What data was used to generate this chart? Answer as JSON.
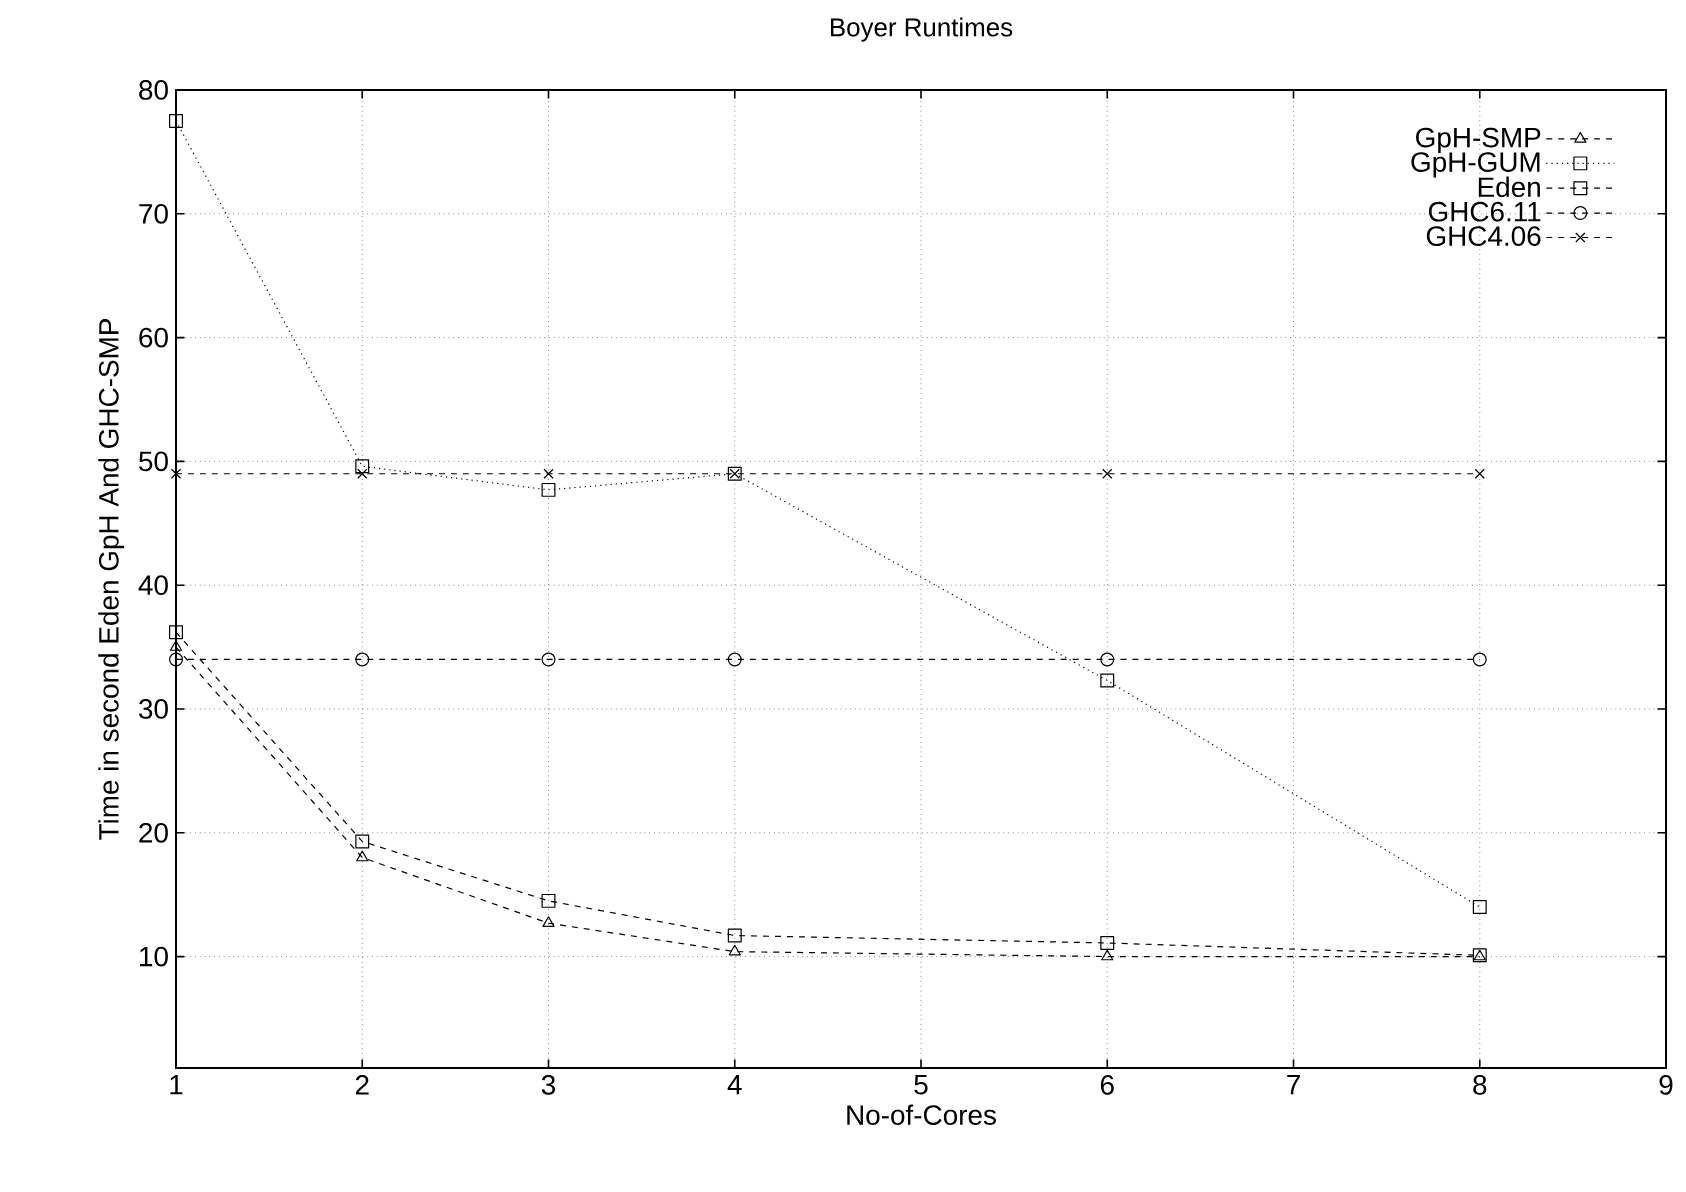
{
  "chart_data": {
    "type": "line",
    "title": "Boyer  Runtimes",
    "xlabel": "No-of-Cores",
    "ylabel": "Time in second Eden GpH And GHC-SMP",
    "x": [
      1,
      2,
      3,
      4,
      6,
      8
    ],
    "series": [
      {
        "name": "GpH-SMP",
        "color": "#000000",
        "marker": "triangle",
        "line_style": "dashed",
        "values": [
          35,
          18,
          12.7,
          10.4,
          10,
          10
        ]
      },
      {
        "name": "GpH-GUM",
        "color": "#000000",
        "marker": "square",
        "line_style": "dotted",
        "values": [
          77.5,
          49.6,
          47.7,
          49,
          32.3,
          14
        ]
      },
      {
        "name": "Eden",
        "color": "#000000",
        "marker": "square",
        "line_style": "dashed",
        "values": [
          36.2,
          19.3,
          14.5,
          11.7,
          11.1,
          10.1
        ]
      },
      {
        "name": "GHC6.11",
        "color": "#000000",
        "marker": "circle",
        "line_style": "dashed",
        "values": [
          34,
          34,
          34,
          34,
          34,
          34
        ]
      },
      {
        "name": "GHC4.06",
        "color": "#000000",
        "marker": "cross",
        "line_style": "dashed",
        "values": [
          49,
          49,
          49,
          49,
          49,
          49
        ]
      }
    ],
    "xlim": [
      1,
      9
    ],
    "xticks": [
      1,
      2,
      3,
      4,
      5,
      6,
      7,
      8,
      9
    ],
    "ylim": [
      1,
      80
    ],
    "yticks": [
      10,
      20,
      30,
      40,
      50,
      60,
      70,
      80
    ],
    "grid": true,
    "legend": "top right"
  }
}
